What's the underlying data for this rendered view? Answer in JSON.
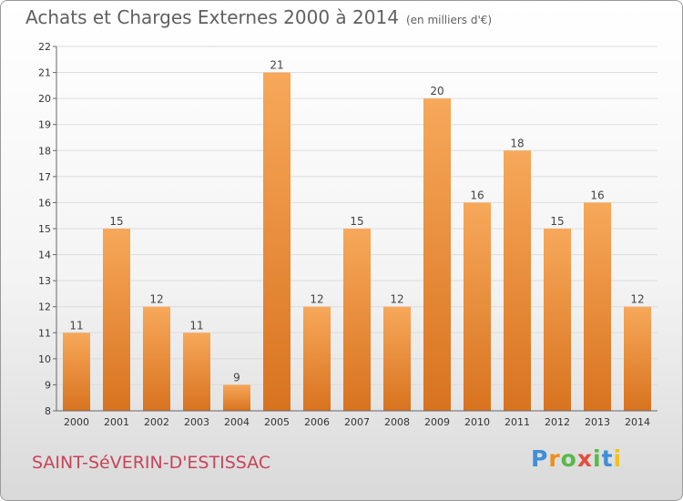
{
  "title": "Achats et Charges Externes 2000 à 2014",
  "unit_label": "(en milliers d'€)",
  "place": "SAINT-SéVERIN-D'ESTISSAC",
  "logo": {
    "text": "Proxiti"
  },
  "colors": {
    "bar_light": "#f7a85a",
    "bar_dark": "#d8731f",
    "grid": "#dcdcdc",
    "place": "#c8445a"
  },
  "chart_data": {
    "type": "bar",
    "categories": [
      "2000",
      "2001",
      "2002",
      "2003",
      "2004",
      "2005",
      "2006",
      "2007",
      "2008",
      "2009",
      "2010",
      "2011",
      "2012",
      "2013",
      "2014"
    ],
    "values": [
      11,
      15,
      12,
      11,
      9,
      21,
      12,
      15,
      12,
      20,
      16,
      18,
      15,
      16,
      12
    ],
    "title": "Achats et Charges Externes 2000 à 2014",
    "ylim": [
      8,
      22
    ],
    "yticks": [
      8,
      9,
      10,
      11,
      12,
      13,
      14,
      15,
      16,
      17,
      18,
      19,
      20,
      21,
      22
    ],
    "grid": true,
    "data_labels": true
  }
}
